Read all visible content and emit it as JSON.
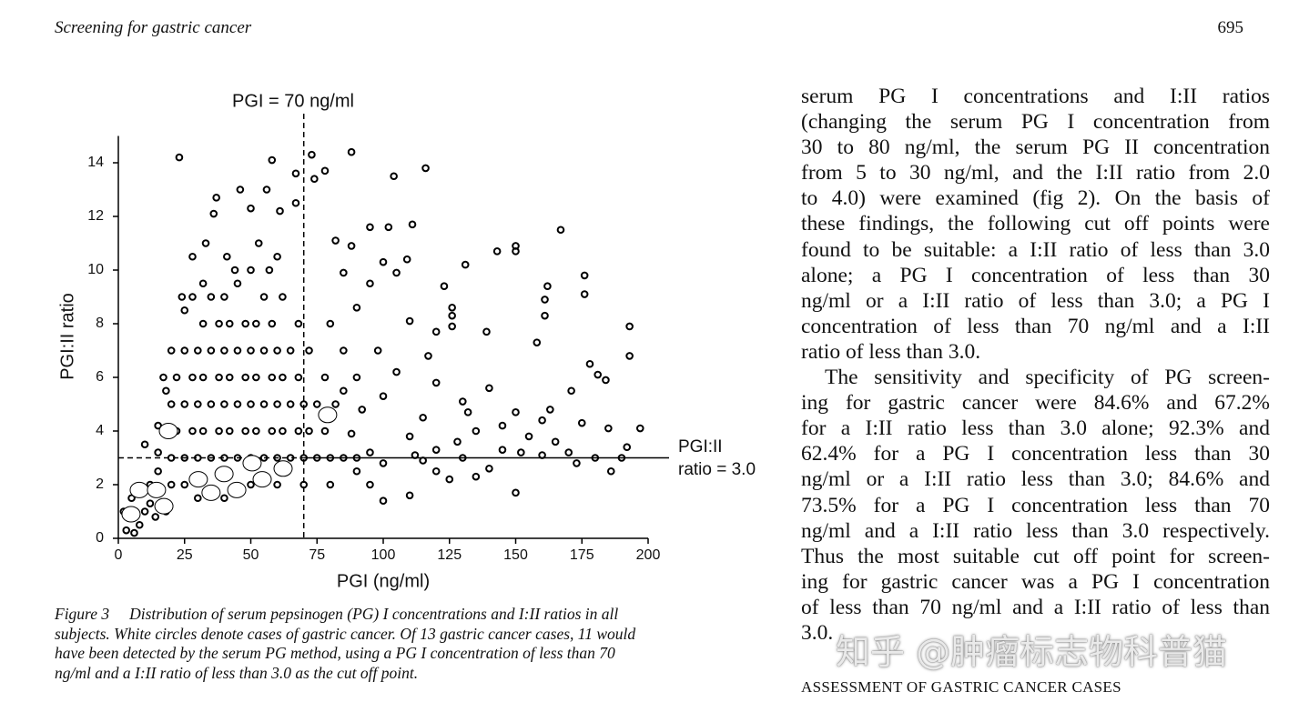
{
  "header": {
    "title": "Screening for gastric cancer",
    "page": "695"
  },
  "chart_data": {
    "type": "scatter",
    "xlabel": "PGI (ng/ml)",
    "ylabel": "PGI:II ratio",
    "xlim": [
      0,
      200
    ],
    "ylim": [
      0,
      15
    ],
    "xticks": [
      0,
      25,
      50,
      75,
      100,
      125,
      150,
      175,
      200
    ],
    "yticks": [
      0,
      2,
      4,
      6,
      8,
      10,
      12,
      14
    ],
    "vline": 70,
    "vline_label": "PGI = 70 ng/ml",
    "hline": 3.0,
    "hline_label": [
      "PGI:II",
      "ratio = 3.0"
    ],
    "series": [
      {
        "color": "#000000",
        "x": [
          23,
          58,
          73,
          88,
          116,
          104,
          67,
          74,
          78,
          37,
          46,
          56,
          36,
          50,
          61,
          67,
          95,
          102,
          111,
          167,
          143,
          131,
          150,
          150,
          176,
          176,
          162,
          161,
          161,
          158,
          193,
          193,
          178,
          181,
          171,
          184,
          175,
          197,
          192,
          185,
          155,
          160,
          163,
          150,
          140,
          130,
          126,
          123,
          126,
          126,
          139,
          117,
          120,
          110,
          100,
          105,
          88,
          82,
          109,
          95,
          90,
          85,
          132,
          145,
          152,
          160,
          170,
          180,
          140,
          150,
          135,
          125,
          120,
          110,
          100,
          95,
          110,
          115,
          120,
          105,
          98,
          100,
          92,
          88,
          85,
          95,
          100,
          115,
          128,
          135,
          145,
          165,
          173,
          190,
          186,
          130,
          120,
          112,
          20,
          20,
          20,
          22,
          22,
          25,
          25,
          25,
          25,
          28,
          28,
          28,
          30,
          30,
          30,
          32,
          32,
          32,
          35,
          35,
          35,
          35,
          38,
          38,
          38,
          40,
          40,
          40,
          40,
          42,
          42,
          42,
          45,
          45,
          45,
          45,
          48,
          48,
          48,
          50,
          50,
          50,
          50,
          52,
          52,
          52,
          55,
          55,
          55,
          55,
          58,
          58,
          58,
          60,
          60,
          60,
          62,
          62,
          62,
          65,
          65,
          65,
          68,
          68,
          68,
          70,
          70,
          72,
          72,
          75,
          75,
          78,
          78,
          80,
          80,
          82,
          85,
          85,
          90,
          90,
          10,
          12,
          15,
          8,
          5,
          3,
          10,
          15,
          18,
          17,
          15,
          12,
          20,
          25,
          30,
          40,
          50,
          60,
          70,
          80,
          90,
          2,
          6,
          14,
          18,
          28,
          33,
          41,
          53,
          60,
          24,
          32,
          44,
          57
        ],
        "values": [
          14.2,
          14.1,
          14.3,
          14.4,
          13.8,
          13.5,
          13.6,
          13.4,
          13.7,
          12.7,
          13,
          13,
          12.1,
          12.3,
          12.2,
          12.5,
          11.6,
          11.6,
          11.7,
          11.5,
          10.7,
          10.2,
          10.9,
          10.7,
          9.8,
          9.1,
          9.4,
          8.9,
          8.3,
          7.3,
          7.9,
          6.8,
          6.5,
          6.1,
          5.5,
          5.9,
          4.3,
          4.1,
          3.4,
          4.1,
          3.8,
          4.4,
          4.8,
          4.7,
          5.6,
          5.1,
          8.6,
          9.4,
          8.3,
          7.9,
          7.7,
          6.8,
          7.7,
          8.1,
          10.3,
          9.9,
          10.9,
          11.1,
          10.4,
          9.5,
          8.6,
          9.9,
          4.7,
          3.3,
          3.2,
          3.1,
          3.2,
          3.0,
          2.6,
          1.7,
          2.3,
          2.2,
          2.5,
          1.6,
          1.4,
          2.0,
          3.8,
          4.5,
          5.8,
          6.2,
          7.0,
          5.3,
          4.8,
          3.9,
          5.5,
          3.2,
          2.8,
          2.9,
          3.6,
          4.0,
          4.2,
          3.6,
          2.8,
          3.0,
          2.5,
          3.0,
          3.3,
          3.1,
          3,
          5,
          7,
          4,
          6,
          3,
          5,
          7,
          8.5,
          4,
          6,
          9,
          3,
          5,
          7,
          4,
          6,
          8,
          3,
          5,
          7,
          9,
          4,
          6,
          8,
          3,
          5,
          7,
          9,
          4,
          6,
          8,
          3,
          5,
          7,
          9.5,
          4,
          6,
          8,
          3,
          5,
          7,
          10,
          4,
          6,
          8,
          3,
          5,
          7,
          9,
          4,
          6,
          8,
          3,
          5,
          7,
          4,
          6,
          9,
          3,
          5,
          7,
          4,
          6,
          8,
          3,
          5,
          4,
          7,
          3,
          5,
          4,
          6,
          3,
          8,
          5,
          3,
          7,
          3,
          6,
          1,
          2,
          2.5,
          0.5,
          1.5,
          0.3,
          3.5,
          4.2,
          5.5,
          6,
          3.2,
          1.3,
          2,
          2,
          1.5,
          1.5,
          2,
          2,
          2,
          2,
          2.5,
          1,
          0.2,
          0.8,
          1,
          10.5,
          11,
          10.5,
          11,
          10.5,
          9,
          9.5,
          10,
          10
        ]
      },
      {
        "color": "#ffffff",
        "x": [
          4.8,
          7.9,
          14.4,
          17.2,
          18.9,
          30.2,
          35,
          39.9,
          44.7,
          50.5,
          54.3,
          62.2,
          79
        ],
        "values": [
          0.9,
          1.8,
          1.8,
          1.2,
          4.0,
          2.2,
          1.7,
          2.4,
          1.8,
          2.8,
          2.2,
          2.6,
          4.6
        ]
      }
    ]
  },
  "caption": {
    "label": "Figure 3",
    "lines": [
      "Distribution of serum pepsinogen (PG) I concentrations and I:II ratios in all",
      "subjects. White circles denote cases of gastric cancer. Of 13 gastric cancer cases, 11 would",
      "have been detected by the serum PG method, using a PG I concentration of less than 70",
      "ng/ml and a I:II ratio of less than 3.0 as the cut off point."
    ]
  },
  "body": {
    "paragraphs": [
      [
        "serum PG I concentrations and I:II ratios",
        "(changing the serum PG I concentration from",
        "30 to 80 ng/ml, the serum PG II concentration",
        "from 5 to 30 ng/ml, and the I:II ratio from 2.0",
        "to 4.0) were examined (fig 2). On the basis of",
        "these findings, the following cut off points were",
        "found to be suitable: a I:II ratio of less than 3.0",
        "alone; a PG I concentration of less than 30",
        "ng/ml or a I:II ratio of less than 3.0; a PG I",
        "concentration of less than 70 ng/ml and a I:II",
        "ratio of less than 3.0."
      ],
      [
        "The sensitivity and specificity of PG screen-",
        "ing for gastric cancer were 84.6% and 67.2%",
        "for a I:II ratio less than 3.0 alone; 92.3% and",
        "62.4% for a PG I concentration less than 30",
        "ng/ml or a I:II ratio less than 3.0; 84.6% and",
        "73.5% for a PG I concentration less than 70",
        "ng/ml and a I:II ratio less than 3.0 respectively.",
        "Thus the most suitable cut off point for screen-",
        "ing for gastric cancer was a PG I concentration",
        "of less than 70 ng/ml and a I:II ratio of less than",
        "3.0."
      ]
    ]
  },
  "section_heading": "ASSESSMENT OF GASTRIC CANCER CASES",
  "watermark": "知乎 @肿瘤标志物科普猫"
}
